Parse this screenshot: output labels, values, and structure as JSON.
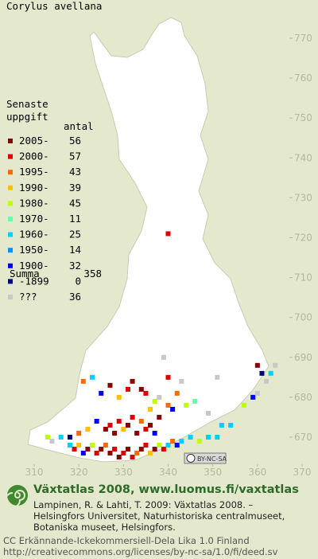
{
  "map": {
    "title": "Corylus avellana",
    "legend": {
      "heading": [
        "Senaste",
        "uppgift"
      ],
      "count_heading": "antal",
      "items": [
        {
          "label": "2005-",
          "count": 56,
          "color": "#8b0000"
        },
        {
          "label": "2000-",
          "count": 57,
          "color": "#e00000"
        },
        {
          "label": "1995-",
          "count": 43,
          "color": "#ff6a00"
        },
        {
          "label": "1990-",
          "count": 39,
          "color": "#ffc000"
        },
        {
          "label": "1980-",
          "count": 45,
          "color": "#c0ff00"
        },
        {
          "label": "1970-",
          "count": 11,
          "color": "#66ffaa"
        },
        {
          "label": "1960-",
          "count": 25,
          "color": "#00d0ff"
        },
        {
          "label": "1950-",
          "count": 14,
          "color": "#0090ff"
        },
        {
          "label": "1900-",
          "count": 32,
          "color": "#0000ff"
        },
        {
          "label": "-1899",
          "count": 0,
          "color": "#000080"
        },
        {
          "label": "???",
          "count": 36,
          "color": "#c8c8c8"
        }
      ],
      "total_label": "Summa",
      "total": 358
    },
    "xlim": [
      310,
      370
    ],
    "ylim": [
      670,
      770
    ],
    "xticks": [
      310,
      320,
      330,
      340,
      350,
      360,
      370
    ],
    "yticks": [
      670,
      680,
      690,
      700,
      710,
      720,
      730,
      740,
      750,
      760,
      770
    ],
    "cells": [
      [
        318,
        668,
        6
      ],
      [
        319,
        667,
        1
      ],
      [
        320,
        668,
        3
      ],
      [
        321,
        666,
        8
      ],
      [
        322,
        667,
        0
      ],
      [
        323,
        668,
        4
      ],
      [
        324,
        666,
        1
      ],
      [
        325,
        667,
        0
      ],
      [
        326,
        668,
        2
      ],
      [
        327,
        666,
        0
      ],
      [
        328,
        667,
        1
      ],
      [
        329,
        665,
        0
      ],
      [
        330,
        666,
        1
      ],
      [
        331,
        667,
        0
      ],
      [
        332,
        665,
        1
      ],
      [
        333,
        666,
        2
      ],
      [
        334,
        667,
        0
      ],
      [
        335,
        668,
        1
      ],
      [
        336,
        666,
        3
      ],
      [
        337,
        667,
        0
      ],
      [
        338,
        668,
        4
      ],
      [
        339,
        667,
        1
      ],
      [
        340,
        668,
        6
      ],
      [
        341,
        669,
        2
      ],
      [
        342,
        668,
        8
      ],
      [
        343,
        669,
        6
      ],
      [
        345,
        670,
        6
      ],
      [
        347,
        669,
        4
      ],
      [
        349,
        670,
        6
      ],
      [
        351,
        670,
        6
      ],
      [
        352,
        673,
        6
      ],
      [
        354,
        673,
        6
      ],
      [
        357,
        678,
        4
      ],
      [
        359,
        680,
        8
      ],
      [
        360,
        681,
        10
      ],
      [
        362,
        684,
        10
      ],
      [
        363,
        686,
        6
      ],
      [
        326,
        672,
        0
      ],
      [
        327,
        673,
        1
      ],
      [
        328,
        671,
        0
      ],
      [
        329,
        674,
        1
      ],
      [
        330,
        672,
        3
      ],
      [
        331,
        673,
        0
      ],
      [
        332,
        675,
        1
      ],
      [
        333,
        671,
        0
      ],
      [
        334,
        674,
        2
      ],
      [
        335,
        672,
        1
      ],
      [
        336,
        673,
        0
      ],
      [
        337,
        671,
        8
      ],
      [
        338,
        675,
        0
      ],
      [
        324,
        674,
        8
      ],
      [
        322,
        672,
        3
      ],
      [
        320,
        671,
        2
      ],
      [
        318,
        670,
        9
      ],
      [
        316,
        670,
        6
      ],
      [
        314,
        669,
        10
      ],
      [
        313,
        670,
        4
      ],
      [
        321,
        684,
        2
      ],
      [
        323,
        685,
        6
      ],
      [
        325,
        681,
        8
      ],
      [
        327,
        683,
        0
      ],
      [
        329,
        680,
        3
      ],
      [
        331,
        682,
        1
      ],
      [
        332,
        684,
        0
      ],
      [
        334,
        682,
        0
      ],
      [
        335,
        681,
        1
      ],
      [
        336,
        677,
        3
      ],
      [
        337,
        679,
        4
      ],
      [
        338,
        680,
        10
      ],
      [
        340,
        678,
        2
      ],
      [
        341,
        677,
        8
      ],
      [
        342,
        681,
        2
      ],
      [
        344,
        678,
        4
      ],
      [
        346,
        679,
        5
      ],
      [
        340,
        685,
        1
      ],
      [
        343,
        684,
        10
      ],
      [
        349,
        676,
        10
      ],
      [
        351,
        685,
        10
      ],
      [
        339,
        690,
        10
      ],
      [
        360,
        688,
        0
      ],
      [
        361,
        686,
        9
      ],
      [
        364,
        688,
        10
      ],
      [
        340,
        721,
        1
      ]
    ],
    "license_badge": "BY-NC-SA"
  },
  "footer": {
    "headline": "Växtatlas 2008, www.luomus.fi/vaxtatlas",
    "citation": [
      "Lampinen, R. & Lahti, T. 2009: Växtatlas 2008. –",
      "Helsingfors Universitet, Naturhistoriska centralmuseet,",
      "Botaniska museet, Helsingfors."
    ],
    "license": [
      "CC Erkännande-Ickekommersiell-Dela Lika 1.0 Finland",
      "http://creativecommons.org/licenses/by-nc-sa/1.0/fi/deed.sv"
    ]
  }
}
